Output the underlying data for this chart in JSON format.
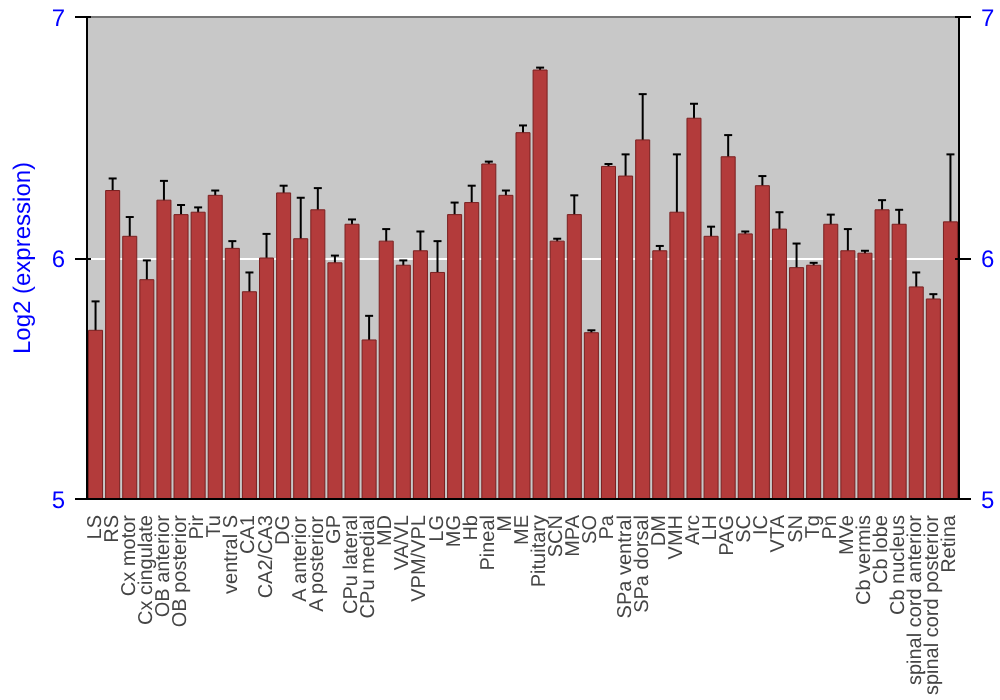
{
  "chart_data": {
    "type": "bar",
    "ylabel": "Log2 (expression)",
    "categories": [
      "LS",
      "RS",
      "Cx motor",
      "Cx cingulate",
      "OB anterior",
      "OB posterior",
      "Pir",
      "Tu",
      "ventral S",
      "CA1",
      "CA2/CA3",
      "DG",
      "A anterior",
      "A posterior",
      "GP",
      "CPu lateral",
      "CPu medial",
      "MD",
      "VA/VL",
      "VPM/VPL",
      "LG",
      "MG",
      "Hb",
      "Pineal",
      "M",
      "ME",
      "Pituitary",
      "SCN",
      "MPA",
      "SO",
      "Pa",
      "SPa ventral",
      "SPa dorsal",
      "DM",
      "VMH",
      "Arc",
      "LH",
      "PAG",
      "SC",
      "IC",
      "VTA",
      "SN",
      "Tg",
      "Pn",
      "MVe",
      "Cb vermis",
      "Cb lobe",
      "Cb nucleus",
      "spinal cord anterior",
      "spinal cord posterior",
      "Retina"
    ],
    "values": [
      5.7,
      6.28,
      6.09,
      5.91,
      6.24,
      6.18,
      6.19,
      6.26,
      6.04,
      5.86,
      6.0,
      6.27,
      6.08,
      6.2,
      5.98,
      6.14,
      5.66,
      6.07,
      5.97,
      6.03,
      5.94,
      6.18,
      6.23,
      6.39,
      6.26,
      6.52,
      6.78,
      6.07,
      6.18,
      5.69,
      6.38,
      6.34,
      6.49,
      6.03,
      6.19,
      6.58,
      6.09,
      6.42,
      6.1,
      6.3,
      6.12,
      5.96,
      5.97,
      6.14,
      6.03,
      6.02,
      6.2,
      6.14,
      5.88,
      5.83,
      6.15
    ],
    "errors": [
      0.12,
      0.05,
      0.08,
      0.08,
      0.08,
      0.04,
      0.02,
      0.02,
      0.03,
      0.08,
      0.1,
      0.03,
      0.17,
      0.09,
      0.03,
      0.02,
      0.1,
      0.05,
      0.02,
      0.08,
      0.13,
      0.05,
      0.07,
      0.01,
      0.02,
      0.03,
      0.01,
      0.01,
      0.08,
      0.01,
      0.01,
      0.09,
      0.19,
      0.02,
      0.24,
      0.06,
      0.04,
      0.09,
      0.01,
      0.04,
      0.07,
      0.1,
      0.01,
      0.04,
      0.09,
      0.01,
      0.04,
      0.06,
      0.06,
      0.02,
      0.28
    ],
    "color": "#b33b3b",
    "ylim": [
      5,
      7
    ],
    "yticks": [
      5,
      6,
      7
    ],
    "y2lim": [
      5,
      7
    ],
    "y2ticks": [
      5,
      6,
      7
    ],
    "grid": "y"
  }
}
